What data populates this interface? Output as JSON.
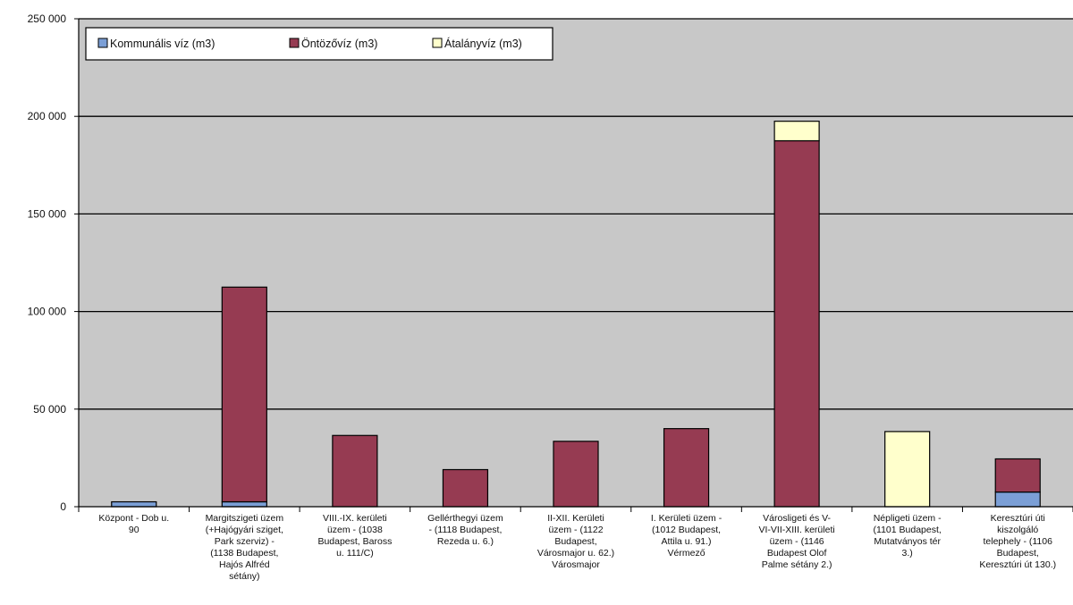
{
  "chart_data": {
    "type": "bar",
    "stacked": true,
    "grid": true,
    "legend_position": "top-left",
    "ylim": [
      0,
      250000
    ],
    "yticks": [
      0,
      50000,
      100000,
      150000,
      200000,
      250000
    ],
    "ytick_labels": [
      "0",
      "50 000",
      "100 000",
      "150 000",
      "200 000",
      "250 000"
    ],
    "categories": [
      "Központ - Dob u. 90",
      "Margitszigeti üzem (+Hajógyári sziget, Park szerviz) - (1138 Budapest, Hajós Alfréd sétány)",
      "VIII.-IX. kerületi üzem - (1038 Budapest, Baross u. 111/C)",
      "Gellérthegyi üzem - (1118 Budapest, Rezeda u. 6.)",
      "II-XII. Kerületi üzem - (1122 Budapest, Városmajor u. 62.) Városmajor",
      "I. Kerületi üzem - (1012 Budapest, Attila u. 91.) Vérmező",
      "Városligeti és V-VI-VII-XIII. kerületi üzem - (1146 Budapest Olof Palme sétány 2.)",
      "Népligeti üzem - (1101 Budapest, Mutatványos tér 3.)",
      "Keresztúri úti kiszolgáló telephely - (1106 Budapest, Keresztúri út 130.)"
    ],
    "category_lines": [
      [
        "Központ - Dob u.",
        "90"
      ],
      [
        "Margitszigeti üzem",
        "(+Hajógyári sziget,",
        "Park szerviz) -",
        "(1138 Budapest,",
        "Hajós Alfréd",
        "sétány)"
      ],
      [
        "VIII.-IX. kerületi",
        "üzem - (1038",
        "Budapest, Baross",
        "u. 111/C)"
      ],
      [
        "Gellérthegyi üzem",
        "- (1118 Budapest,",
        "Rezeda u. 6.)"
      ],
      [
        "II-XII. Kerületi",
        "üzem - (1122",
        "Budapest,",
        "Városmajor u. 62.)",
        "Városmajor"
      ],
      [
        "I. Kerületi üzem -",
        "(1012 Budapest,",
        "Attila u. 91.)",
        "Vérmező"
      ],
      [
        "Városligeti és V-",
        "VI-VII-XIII. kerületi",
        "üzem - (1146",
        "Budapest Olof",
        "Palme sétány 2.)"
      ],
      [
        "Népligeti üzem -",
        "(1101 Budapest,",
        "Mutatványos tér",
        "3.)"
      ],
      [
        "Keresztúri úti",
        "kiszolgáló",
        "telephely - (1106",
        "Budapest,",
        "Keresztúri út 130.)"
      ]
    ],
    "series": [
      {
        "name": "Kommunális víz (m3)",
        "color": "#7b9fd6",
        "values": [
          2500,
          2500,
          0,
          0,
          0,
          0,
          0,
          0,
          7500
        ]
      },
      {
        "name": "Öntözővíz (m3)",
        "color": "#963b52",
        "values": [
          0,
          110000,
          36500,
          19000,
          33500,
          40000,
          187500,
          0,
          17000
        ]
      },
      {
        "name": "Átalányvíz (m3)",
        "color": "#ffffcc",
        "values": [
          0,
          0,
          0,
          0,
          0,
          0,
          10000,
          38500,
          0
        ]
      }
    ],
    "colors": {
      "plot_background": "#c8c8c8",
      "gridline": "#000000",
      "bar_outline": "#000000"
    }
  }
}
